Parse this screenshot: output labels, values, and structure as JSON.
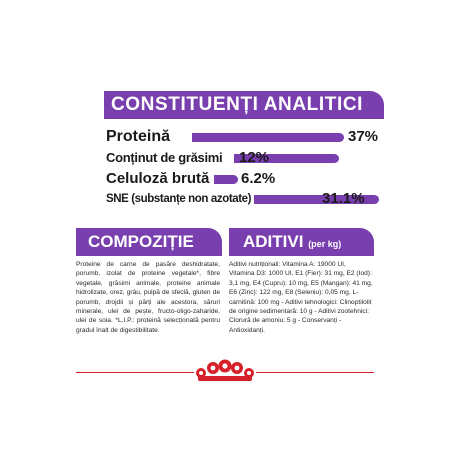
{
  "header": {
    "title": "CONSTITUENȚI ANALITICI"
  },
  "analytics": [
    {
      "label": "Proteină",
      "value": "37%",
      "fraction": 0.37
    },
    {
      "label": "Conținut de grăsimi",
      "value": "12%",
      "fraction": 0.12
    },
    {
      "label": "Celuloză brută",
      "value": "6.2%",
      "fraction": 0.062
    },
    {
      "label": "SNE (substanțe non azotate)",
      "value": "31.1%",
      "fraction": 0.311
    }
  ],
  "composition": {
    "title": "COMPOZIȚIE",
    "text": "Proteine de carne de pasăre deshidratate, porumb, izolat de proteine vegetale*, fibre vegetale, grăsimi animale, proteine animale hidrolizate, orez, grâu, pulpă de sfeclă, gluten de porumb, drojdii și părți ale acestora, săruri minerale, ulei de pește, fructo-oligo-zaharide, ulei de soia. *L.I.P.: proteină selecționată pentru gradul înalt de digestibilitate."
  },
  "additives": {
    "title": "ADITIVI",
    "title_suffix": "(per kg)",
    "text": "Aditivi nutriționali: Vitamina A: 19000 UI, Vitamina D3: 1000 UI, E1 (Fier): 31 mg, E2 (Iod): 3,1 mg, E4 (Cupru): 10 mg, E5 (Mangan): 41 mg, E6 (Zinc): 122 mg, E8 (Seleniu): 0,05 mg, L-carnitină: 100 mg - Aditivi tehnologici: Clinoptilolit de origine sedimentară: 10 g - Aditivi zootehnici: Clorură de amoniu: 5 g - Conservanți - Antioxidanți."
  },
  "colors": {
    "accent": "#7a3fae",
    "brand_red": "#d72027"
  },
  "icons": {
    "logo": "royal-canin-crown-logo"
  }
}
